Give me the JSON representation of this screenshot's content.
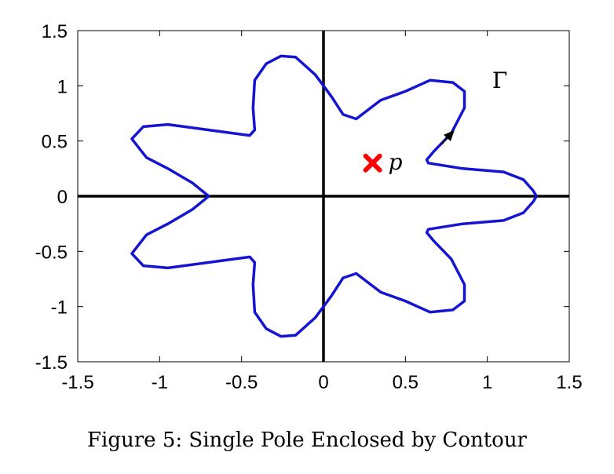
{
  "caption": "Figure 5: Single Pole Enclosed by Contour",
  "chart_data": {
    "type": "line",
    "title": "",
    "xlabel": "",
    "ylabel": "",
    "xlim": [
      -1.5,
      1.5
    ],
    "ylim": [
      -1.5,
      1.5
    ],
    "xticks": [
      -1.5,
      -1,
      -0.5,
      0,
      0.5,
      1,
      1.5
    ],
    "yticks": [
      -1.5,
      -1,
      -0.5,
      0,
      0.5,
      1,
      1.5
    ],
    "xtick_labels": [
      "-1.5",
      "-1",
      "-0.5",
      "0",
      "0.5",
      "1",
      "1.5"
    ],
    "ytick_labels": [
      "-1.5",
      "-1",
      "-0.5",
      "0",
      "0.5",
      "1",
      "1.5"
    ],
    "grid": false,
    "axes_lines": true,
    "contour": {
      "label": "Γ",
      "color": "#1414d2",
      "points": [
        [
          1.3,
          0.0
        ],
        [
          1.28,
          0.05
        ],
        [
          1.22,
          0.15
        ],
        [
          1.1,
          0.22
        ],
        [
          0.85,
          0.25
        ],
        [
          0.64,
          0.3
        ],
        [
          0.63,
          0.33
        ],
        [
          0.67,
          0.4
        ],
        [
          0.78,
          0.57
        ],
        [
          0.86,
          0.8
        ],
        [
          0.86,
          0.95
        ],
        [
          0.79,
          1.03
        ],
        [
          0.65,
          1.05
        ],
        [
          0.5,
          0.95
        ],
        [
          0.35,
          0.87
        ],
        [
          0.2,
          0.7
        ],
        [
          0.12,
          0.74
        ],
        [
          0.05,
          0.9
        ],
        [
          0.0,
          1.0
        ],
        [
          -0.05,
          1.1
        ],
        [
          -0.17,
          1.26
        ],
        [
          -0.26,
          1.27
        ],
        [
          -0.35,
          1.2
        ],
        [
          -0.42,
          1.05
        ],
        [
          -0.43,
          0.8
        ],
        [
          -0.42,
          0.6
        ],
        [
          -0.45,
          0.55
        ],
        [
          -0.7,
          0.6
        ],
        [
          -0.95,
          0.65
        ],
        [
          -1.1,
          0.63
        ],
        [
          -1.17,
          0.52
        ],
        [
          -1.08,
          0.35
        ],
        [
          -0.95,
          0.25
        ],
        [
          -0.8,
          0.12
        ],
        [
          -0.7,
          0.0
        ],
        [
          -0.8,
          -0.12
        ],
        [
          -0.95,
          -0.25
        ],
        [
          -1.08,
          -0.35
        ],
        [
          -1.17,
          -0.52
        ],
        [
          -1.1,
          -0.63
        ],
        [
          -0.95,
          -0.65
        ],
        [
          -0.7,
          -0.6
        ],
        [
          -0.45,
          -0.55
        ],
        [
          -0.42,
          -0.6
        ],
        [
          -0.43,
          -0.8
        ],
        [
          -0.42,
          -1.05
        ],
        [
          -0.35,
          -1.2
        ],
        [
          -0.26,
          -1.27
        ],
        [
          -0.17,
          -1.26
        ],
        [
          -0.05,
          -1.1
        ],
        [
          0.0,
          -1.0
        ],
        [
          0.05,
          -0.9
        ],
        [
          0.12,
          -0.74
        ],
        [
          0.2,
          -0.7
        ],
        [
          0.35,
          -0.87
        ],
        [
          0.5,
          -0.95
        ],
        [
          0.65,
          -1.05
        ],
        [
          0.79,
          -1.03
        ],
        [
          0.86,
          -0.95
        ],
        [
          0.86,
          -0.8
        ],
        [
          0.78,
          -0.57
        ],
        [
          0.67,
          -0.4
        ],
        [
          0.63,
          -0.33
        ],
        [
          0.64,
          -0.3
        ],
        [
          0.85,
          -0.25
        ],
        [
          1.1,
          -0.22
        ],
        [
          1.22,
          -0.15
        ],
        [
          1.28,
          -0.05
        ],
        [
          1.3,
          0.0
        ]
      ]
    },
    "arrow": {
      "from": [
        0.72,
        0.47
      ],
      "to": [
        0.8,
        0.6
      ],
      "color": "#000000"
    },
    "pole": {
      "x": 0.3,
      "y": 0.3,
      "label": "p",
      "color": "#ff0000"
    }
  }
}
